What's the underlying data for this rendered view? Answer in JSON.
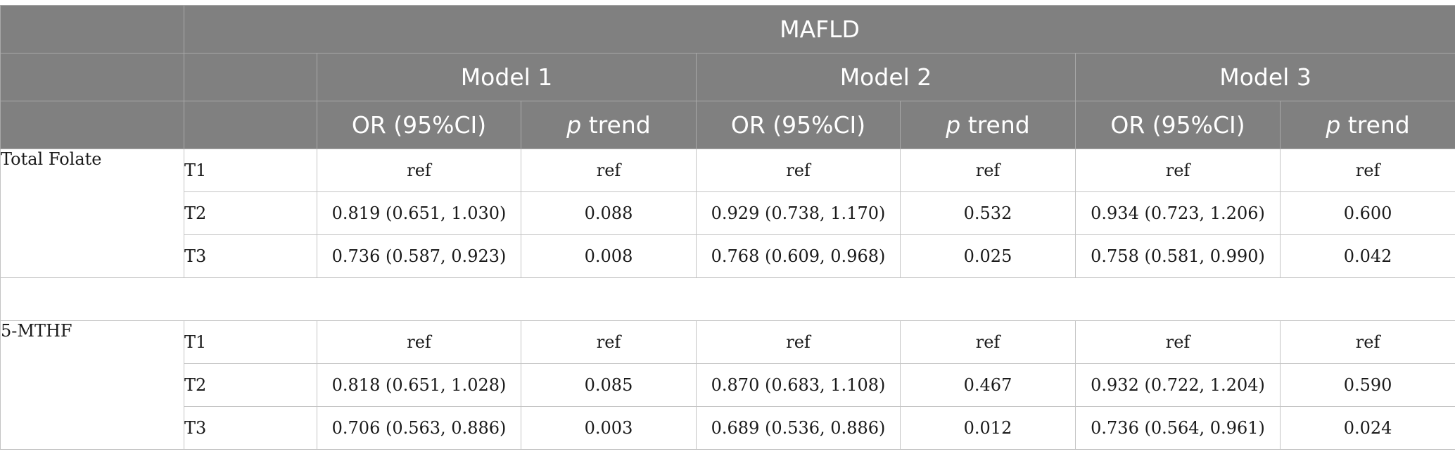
{
  "header": {
    "outcome": "MAFLD",
    "models": [
      "Model 1",
      "Model 2",
      "Model 3"
    ],
    "or_label": "OR (95%CI)",
    "p_italic": "p",
    "trend_label": "trend"
  },
  "groups": [
    {
      "name": "Total Folate",
      "rows": [
        {
          "tertile": "T1",
          "m1_or": "ref",
          "m1_p": "ref",
          "m2_or": "ref",
          "m2_p": "ref",
          "m3_or": "ref",
          "m3_p": "ref"
        },
        {
          "tertile": "T2",
          "m1_or": "0.819 (0.651, 1.030)",
          "m1_p": "0.088",
          "m2_or": "0.929 (0.738, 1.170)",
          "m2_p": "0.532",
          "m3_or": "0.934 (0.723, 1.206)",
          "m3_p": "0.600"
        },
        {
          "tertile": "T3",
          "m1_or": "0.736 (0.587, 0.923)",
          "m1_p": "0.008",
          "m2_or": "0.768 (0.609, 0.968)",
          "m2_p": "0.025",
          "m3_or": "0.758 (0.581, 0.990)",
          "m3_p": "0.042"
        }
      ]
    },
    {
      "name": "5-MTHF",
      "rows": [
        {
          "tertile": "T1",
          "m1_or": "ref",
          "m1_p": "ref",
          "m2_or": "ref",
          "m2_p": "ref",
          "m3_or": "ref",
          "m3_p": "ref"
        },
        {
          "tertile": "T2",
          "m1_or": "0.818 (0.651, 1.028)",
          "m1_p": "0.085",
          "m2_or": "0.870 (0.683, 1.108)",
          "m2_p": "0.467",
          "m3_or": "0.932 (0.722, 1.204)",
          "m3_p": "0.590"
        },
        {
          "tertile": "T3",
          "m1_or": "0.706 (0.563, 0.886)",
          "m1_p": "0.003",
          "m2_or": "0.689 (0.536, 0.886)",
          "m2_p": "0.012",
          "m3_or": "0.736 (0.564, 0.961)",
          "m3_p": "0.024"
        }
      ]
    }
  ]
}
